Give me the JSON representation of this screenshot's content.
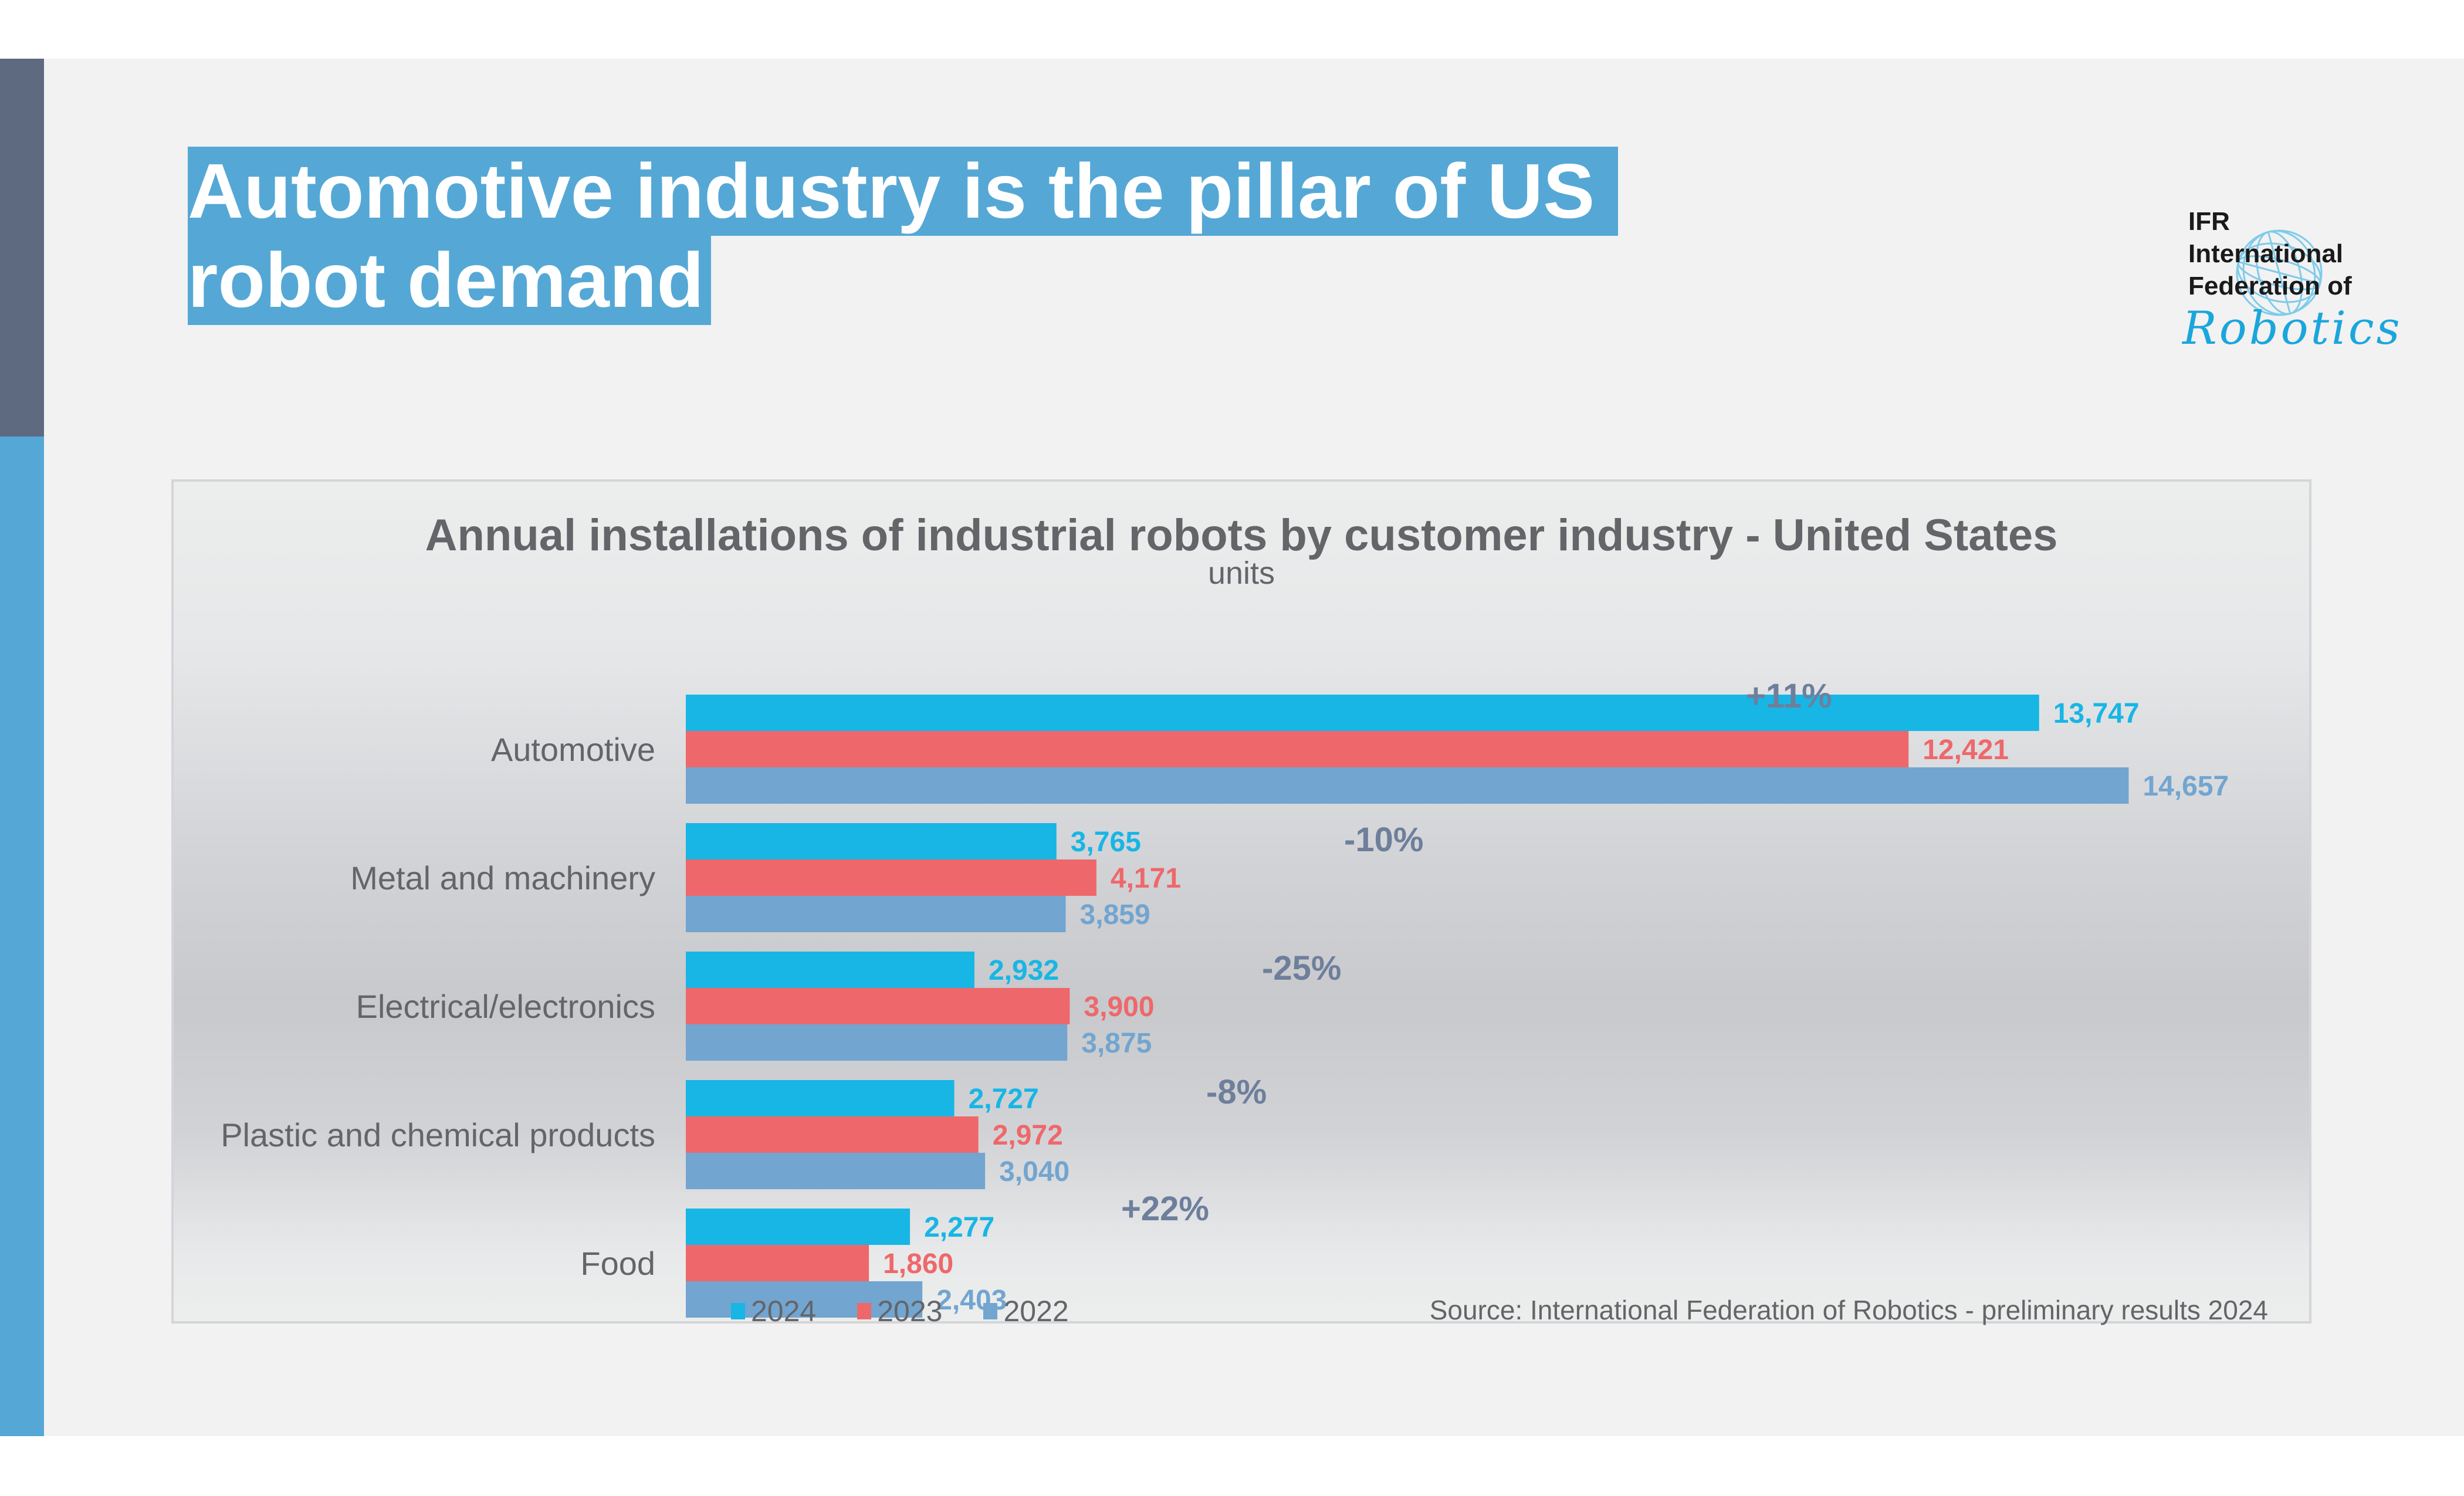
{
  "slide": {
    "headline_line1": "Automotive industry is the pillar of US",
    "headline_line2": "robot demand",
    "accent_color": "#55a8d5",
    "sidebar_top_color": "#5d6a80"
  },
  "logo": {
    "line1": "IFR",
    "line2": "International",
    "line3": "Federation of",
    "script": "Robotics",
    "icon": "globe-icon"
  },
  "legend": [
    {
      "label": "2024",
      "color": "#17b6e5"
    },
    {
      "label": "2023",
      "color": "#ee686b"
    },
    {
      "label": "2022",
      "color": "#72a5d0"
    }
  ],
  "source": "Source: International Federation of Robotics - preliminary results 2024",
  "chart_data": {
    "type": "bar",
    "orientation": "horizontal",
    "title": "Annual installations of industrial robots by customer industry - United States",
    "subtitle": "units",
    "xlabel": "",
    "ylabel": "",
    "xlim": [
      0,
      15000
    ],
    "grid": false,
    "legend_position": "bottom-left",
    "categories": [
      "Automotive",
      "Metal and machinery",
      "Electrical/electronics",
      "Plastic and chemical products",
      "Food"
    ],
    "series": [
      {
        "name": "2024",
        "color": "#17b6e5",
        "values": [
          13747,
          3765,
          2932,
          2727,
          2277
        ],
        "labels": [
          "13,747",
          "3,765",
          "2,932",
          "2,727",
          "2,277"
        ]
      },
      {
        "name": "2023",
        "color": "#ee686b",
        "values": [
          12421,
          4171,
          3900,
          2972,
          1860
        ],
        "labels": [
          "12,421",
          "4,171",
          "3,900",
          "2,972",
          "1,860"
        ]
      },
      {
        "name": "2022",
        "color": "#72a5d0",
        "values": [
          14657,
          3859,
          3875,
          3040,
          2403
        ],
        "labels": [
          "14,657",
          "3,859",
          "3,875",
          "3,040",
          "2,403"
        ]
      }
    ],
    "annotations": [
      "+11%",
      "-10%",
      "-25%",
      "-8%",
      "+22%"
    ],
    "annotation_color": "#6e7f9c"
  }
}
